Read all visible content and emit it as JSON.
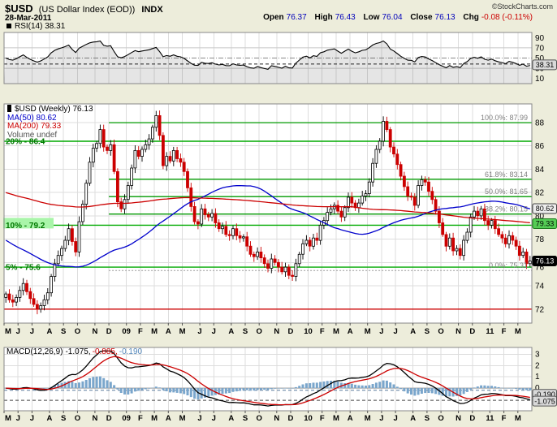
{
  "header": {
    "symbol": "$USD",
    "name": "(US Dollar Index (EOD))",
    "exchange": "INDX",
    "date": "28-Mar-2011",
    "copyright": "©StockCharts.com",
    "open_label": "Open",
    "open": "76.37",
    "high_label": "High",
    "high": "76.43",
    "low_label": "Low",
    "low": "76.04",
    "close_label": "Close",
    "close": "76.13",
    "chg_label": "Chg",
    "chg": "-0.08 (-0.11%)"
  },
  "panels": {
    "rsi_label": "RSI(14)",
    "rsi_value": "38.31",
    "price_legend": "$USD (Weekly) 76.13",
    "ma50_legend": "MA(50) 80.62",
    "ma200_legend": "MA(200) 79.33",
    "volume_legend": "Volume undef",
    "macd_label": "MACD(12,26,9)",
    "macd_v1": "-1.075,",
    "macd_v2": "-0.885,",
    "macd_v3": "-0.190"
  },
  "chart_data": {
    "type": "candlestick",
    "title": "$USD (US Dollar Index (EOD)) INDX — Weekly",
    "timeframe": "Weekly",
    "x_ticks": [
      {
        "label": "M",
        "week": 0
      },
      {
        "label": "J",
        "week": 4
      },
      {
        "label": "J",
        "week": 8
      },
      {
        "label": "A",
        "week": 13
      },
      {
        "label": "S",
        "week": 17
      },
      {
        "label": "O",
        "week": 21
      },
      {
        "label": "N",
        "week": 26
      },
      {
        "label": "D",
        "week": 30
      },
      {
        "label": "09",
        "week": 35,
        "year": true
      },
      {
        "label": "F",
        "week": 39
      },
      {
        "label": "M",
        "week": 43
      },
      {
        "label": "A",
        "week": 47
      },
      {
        "label": "M",
        "week": 51
      },
      {
        "label": "J",
        "week": 56
      },
      {
        "label": "J",
        "week": 60
      },
      {
        "label": "A",
        "week": 65
      },
      {
        "label": "S",
        "week": 69
      },
      {
        "label": "O",
        "week": 73
      },
      {
        "label": "N",
        "week": 78
      },
      {
        "label": "D",
        "week": 82
      },
      {
        "label": "10",
        "week": 87,
        "year": true
      },
      {
        "label": "F",
        "week": 91
      },
      {
        "label": "M",
        "week": 95
      },
      {
        "label": "A",
        "week": 99
      },
      {
        "label": "M",
        "week": 104
      },
      {
        "label": "J",
        "week": 108
      },
      {
        "label": "J",
        "week": 112
      },
      {
        "label": "A",
        "week": 117
      },
      {
        "label": "S",
        "week": 121
      },
      {
        "label": "O",
        "week": 125
      },
      {
        "label": "N",
        "week": 130
      },
      {
        "label": "D",
        "week": 134
      },
      {
        "label": "11",
        "week": 139,
        "year": true
      },
      {
        "label": "F",
        "week": 143
      },
      {
        "label": "M",
        "week": 147
      }
    ],
    "price": {
      "ylim": [
        70.8,
        89.6
      ],
      "yticks": [
        88,
        86,
        84,
        82,
        80,
        78,
        76,
        74,
        72
      ],
      "last_close": 76.13,
      "ma50_last": 80.62,
      "ma200_last": 79.33,
      "close": [
        73.3,
        72.8,
        72.6,
        73.0,
        73.6,
        74.2,
        73.5,
        72.9,
        72.4,
        72.0,
        72.3,
        72.8,
        73.4,
        74.8,
        75.9,
        76.6,
        77.2,
        77.9,
        78.9,
        77.8,
        76.9,
        79.5,
        81.0,
        82.8,
        84.6,
        85.8,
        86.2,
        87.4,
        85.9,
        85.6,
        86.1,
        83.8,
        81.2,
        80.6,
        81.4,
        82.6,
        84.1,
        85.6,
        85.1,
        85.7,
        86.1,
        86.6,
        87.6,
        88.6,
        86.9,
        84.3,
        85.1,
        84.7,
        85.6,
        84.9,
        84.6,
        83.8,
        82.4,
        80.8,
        79.5,
        79.3,
        80.6,
        80.1,
        79.9,
        80.2,
        79.4,
        78.9,
        79.1,
        78.4,
        78.3,
        78.9,
        78.3,
        78.1,
        78.2,
        77.4,
        76.7,
        76.5,
        76.9,
        76.4,
        75.9,
        75.5,
        76.3,
        76.0,
        75.6,
        75.2,
        75.6,
        74.9,
        74.8,
        75.9,
        76.7,
        77.6,
        77.9,
        77.4,
        78.1,
        77.9,
        79.2,
        79.6,
        80.3,
        80.6,
        80.9,
        80.4,
        79.9,
        80.7,
        81.6,
        81.1,
        80.7,
        81.1,
        81.7,
        81.9,
        82.9,
        84.5,
        85.7,
        86.4,
        88.1,
        87.4,
        85.9,
        85.3,
        84.4,
        83.4,
        82.5,
        81.7,
        81.6,
        80.9,
        82.6,
        83.1,
        82.9,
        82.1,
        81.4,
        80.4,
        79.4,
        78.4,
        77.4,
        78.1,
        77.0,
        77.2,
        76.6,
        77.9,
        78.6,
        79.9,
        80.4,
        80.0,
        80.6,
        79.6,
        79.2,
        79.6,
        78.9,
        78.4,
        78.1,
        77.6,
        78.3,
        77.9,
        77.4,
        76.6,
        76.9,
        75.9,
        76.13
      ]
    },
    "overlays": {
      "fib_start_week": 30,
      "fibonacci": [
        {
          "label": "100.0%: 87.99",
          "value": 87.99
        },
        {
          "label": "61.8%: 83.14",
          "value": 83.14
        },
        {
          "label": "50.0%: 81.65",
          "value": 81.65
        },
        {
          "label": "38.2%: 80.15",
          "value": 80.15
        },
        {
          "label": "0.0%: 75.31",
          "value": 75.31,
          "style": "dotted"
        }
      ],
      "percent_lines": [
        {
          "label": "20% - 86.4",
          "value": 86.4,
          "highlight": false
        },
        {
          "label": "10% - 79.2",
          "value": 79.2,
          "highlight": true
        },
        {
          "label": "5% - 75.6",
          "value": 75.6,
          "highlight": false
        }
      ],
      "base_line": {
        "value": 72
      }
    },
    "rsi": {
      "period": 14,
      "last": 38.31,
      "ylim": [
        0,
        100
      ],
      "yticks": [
        90,
        70,
        50,
        30,
        10
      ],
      "ref_lines": [
        70,
        30
      ]
    },
    "macd": {
      "params": "12,26,9",
      "last_macd": -1.075,
      "last_signal": -0.885,
      "last_hist": -0.19,
      "ylim": [
        -2.0,
        3.6
      ],
      "yticks": [
        3,
        2,
        1,
        0
      ]
    },
    "badges": {
      "price": [
        {
          "text": "80.62",
          "value": 80.62,
          "bg": "#EDEDED",
          "fg": "#000000",
          "border": "#444444"
        },
        {
          "text": "79.33",
          "value": 79.33,
          "bg": "#55CC55",
          "fg": "#000000",
          "border": "#1E7A1E"
        },
        {
          "text": "76.13",
          "value": 76.13,
          "bg": "#000000",
          "fg": "#FFFFFF",
          "border": "#000000"
        }
      ],
      "rsi": [
        {
          "text": "38.31",
          "value": 38.31,
          "bg": "#D9D9D9",
          "fg": "#000000",
          "border": "#555555"
        }
      ],
      "macd": [
        {
          "text": "-0.190",
          "value": -0.19,
          "bg": "#D9D9D9",
          "fg": "#000000",
          "border": "#555555"
        },
        {
          "text": "-1.075",
          "value": -1.075,
          "bg": "#D9D9D9",
          "fg": "#000000",
          "border": "#555555"
        }
      ]
    },
    "colors": {
      "up": "#000000",
      "down": "#CC0000",
      "ma50": "#0000CC",
      "ma200": "#CC0000",
      "fib": "#009900",
      "percent": "#00AA00",
      "base": "#CC0000",
      "hist": "#7AA6CC",
      "macd_line": "#000000",
      "signal": "#CC0000",
      "grid": "#DDDDDD",
      "plot_bg": "#FFFFFF",
      "page_bg": "#EDEDDB",
      "highlight": "#A9F5A9"
    }
  }
}
